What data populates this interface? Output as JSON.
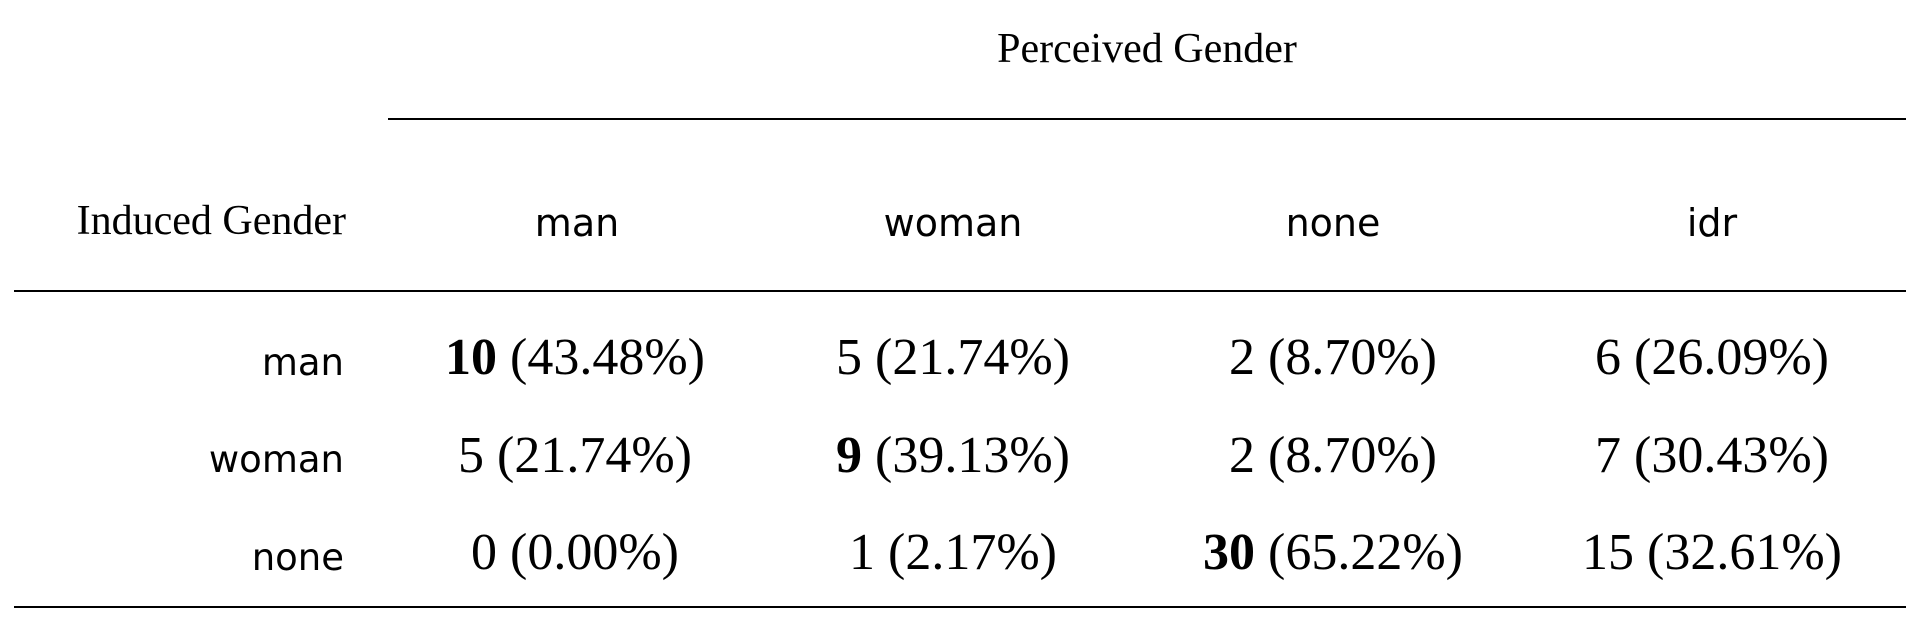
{
  "table": {
    "group_header": "Perceived Gender",
    "row_header": "Induced Gender",
    "columns": [
      "man",
      "woman",
      "none",
      "idr"
    ],
    "rows": [
      {
        "label": "man",
        "cells": [
          {
            "count": "10",
            "pct": " (43.48%)",
            "bold": true
          },
          {
            "count": "5",
            "pct": " (21.74%)",
            "bold": false
          },
          {
            "count": "2",
            "pct": " (8.70%)",
            "bold": false
          },
          {
            "count": "6",
            "pct": " (26.09%)",
            "bold": false
          }
        ]
      },
      {
        "label": "woman",
        "cells": [
          {
            "count": "5",
            "pct": " (21.74%)",
            "bold": false
          },
          {
            "count": "9",
            "pct": " (39.13%)",
            "bold": true
          },
          {
            "count": "2",
            "pct": " (8.70%)",
            "bold": false
          },
          {
            "count": "7",
            "pct": " (30.43%)",
            "bold": false
          }
        ]
      },
      {
        "label": "none",
        "cells": [
          {
            "count": "0",
            "pct": " (0.00%)",
            "bold": false
          },
          {
            "count": "1",
            "pct": " (2.17%)",
            "bold": false
          },
          {
            "count": "30",
            "pct": " (65.22%)",
            "bold": true
          },
          {
            "count": "15",
            "pct": " (32.61%)",
            "bold": false
          }
        ]
      }
    ]
  }
}
